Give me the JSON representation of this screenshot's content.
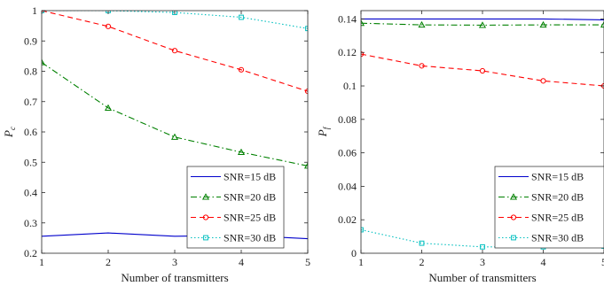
{
  "chart_data": [
    {
      "type": "line",
      "xlabel": "Number of transmitters",
      "ylabel": "P_c",
      "xlim": [
        1,
        5
      ],
      "ylim": [
        0.2,
        1
      ],
      "xticks": [
        1,
        2,
        3,
        4,
        5
      ],
      "yticks": [
        0.2,
        0.3,
        0.4,
        0.5,
        0.6,
        0.7,
        0.8,
        0.9,
        1
      ],
      "ytick_labels": [
        "0.2",
        "0.3",
        "0.4",
        "0.5",
        "0.6",
        "0.7",
        "0.8",
        "0.9",
        "1"
      ],
      "grid": false,
      "legend_position": "bottom-right",
      "x": [
        1,
        2,
        3,
        4,
        5
      ],
      "series": [
        {
          "name": "SNR=15 dB",
          "values": [
            0.256,
            0.267,
            0.256,
            0.259,
            0.248
          ],
          "color": "#0000cc",
          "dash": "solid",
          "marker": "none"
        },
        {
          "name": "SNR=20 dB",
          "values": [
            0.829,
            0.679,
            0.583,
            0.533,
            0.488
          ],
          "color": "#008000",
          "dash": "dashdot",
          "marker": "triangle"
        },
        {
          "name": "SNR=25 dB",
          "values": [
            1.0,
            0.948,
            0.868,
            0.805,
            0.734
          ],
          "color": "#ff0000",
          "dash": "dashed",
          "marker": "circle"
        },
        {
          "name": "SNR=30 dB",
          "values": [
            1.0,
            1.0,
            0.994,
            0.978,
            0.941
          ],
          "color": "#00bfbf",
          "dash": "dotted",
          "marker": "square"
        }
      ]
    },
    {
      "type": "line",
      "xlabel": "Number of transmitters",
      "ylabel": "P_f",
      "xlim": [
        1,
        5
      ],
      "ylim": [
        0,
        0.145
      ],
      "xticks": [
        1,
        2,
        3,
        4,
        5
      ],
      "yticks": [
        0,
        0.02,
        0.04,
        0.06,
        0.08,
        0.1,
        0.12,
        0.14
      ],
      "ytick_labels": [
        "0",
        "0.02",
        "0.04",
        "0.06",
        "0.08",
        "0.1",
        "0.12",
        "0.14"
      ],
      "grid": false,
      "legend_position": "bottom-right",
      "x": [
        1,
        2,
        3,
        4,
        5
      ],
      "series": [
        {
          "name": "SNR=15 dB",
          "values": [
            0.14,
            0.14,
            0.14,
            0.14,
            0.1395
          ],
          "color": "#0000cc",
          "dash": "solid",
          "marker": "none"
        },
        {
          "name": "SNR=20 dB",
          "values": [
            0.1375,
            0.1365,
            0.1363,
            0.1365,
            0.1365
          ],
          "color": "#008000",
          "dash": "dashdot",
          "marker": "triangle"
        },
        {
          "name": "SNR=25 dB",
          "values": [
            0.119,
            0.112,
            0.109,
            0.103,
            0.1
          ],
          "color": "#ff0000",
          "dash": "dashed",
          "marker": "circle"
        },
        {
          "name": "SNR=30 dB",
          "values": [
            0.014,
            0.006,
            0.0038,
            0.0038,
            0.0042
          ],
          "color": "#00bfbf",
          "dash": "dotted",
          "marker": "square"
        }
      ]
    }
  ]
}
